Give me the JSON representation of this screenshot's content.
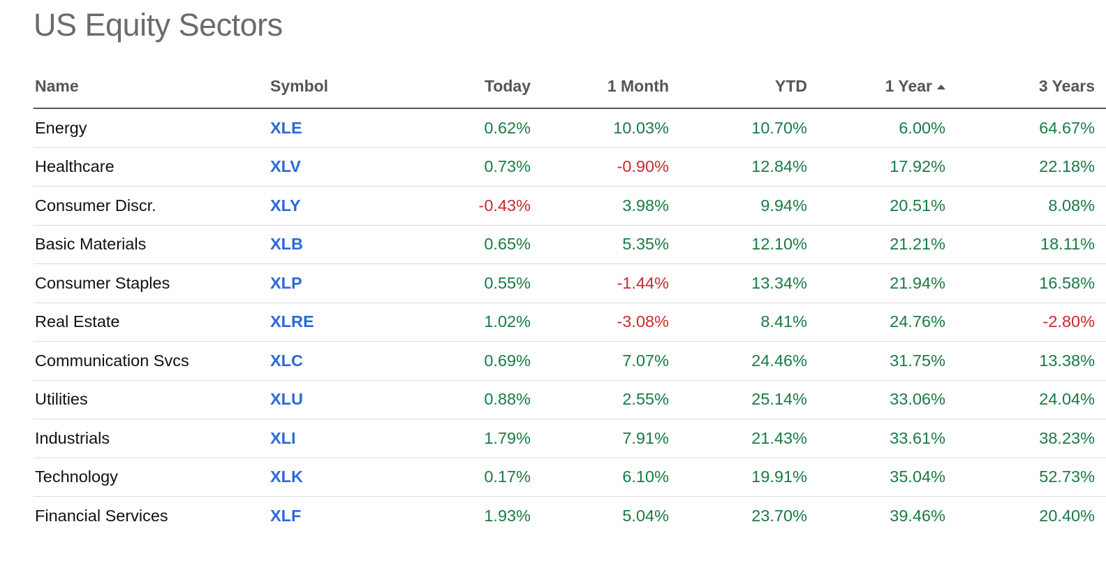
{
  "page": {
    "title": "US Equity Sectors"
  },
  "colors": {
    "positive": "#1a7a45",
    "negative": "#c62a2f",
    "link": "#2c6ad6",
    "header_text": "#555555",
    "title_text": "#6b6b6b"
  },
  "table": {
    "columns": [
      "Name",
      "Symbol",
      "Today",
      "1 Month",
      "YTD",
      "1 Year",
      "3 Years"
    ],
    "sort": {
      "column": "1 Year",
      "direction": "ascending",
      "icon": "sort-ascending-icon"
    },
    "rows": [
      {
        "name": "Energy",
        "symbol": "XLE",
        "today": "0.62%",
        "month": "10.03%",
        "ytd": "10.70%",
        "year": "6.00%",
        "three_years": "64.67%"
      },
      {
        "name": "Healthcare",
        "symbol": "XLV",
        "today": "0.73%",
        "month": "-0.90%",
        "ytd": "12.84%",
        "year": "17.92%",
        "three_years": "22.18%"
      },
      {
        "name": "Consumer Discr.",
        "symbol": "XLY",
        "today": "-0.43%",
        "month": "3.98%",
        "ytd": "9.94%",
        "year": "20.51%",
        "three_years": "8.08%"
      },
      {
        "name": "Basic Materials",
        "symbol": "XLB",
        "today": "0.65%",
        "month": "5.35%",
        "ytd": "12.10%",
        "year": "21.21%",
        "three_years": "18.11%"
      },
      {
        "name": "Consumer Staples",
        "symbol": "XLP",
        "today": "0.55%",
        "month": "-1.44%",
        "ytd": "13.34%",
        "year": "21.94%",
        "three_years": "16.58%"
      },
      {
        "name": "Real Estate",
        "symbol": "XLRE",
        "today": "1.02%",
        "month": "-3.08%",
        "ytd": "8.41%",
        "year": "24.76%",
        "three_years": "-2.80%"
      },
      {
        "name": "Communication Svcs",
        "symbol": "XLC",
        "today": "0.69%",
        "month": "7.07%",
        "ytd": "24.46%",
        "year": "31.75%",
        "three_years": "13.38%"
      },
      {
        "name": "Utilities",
        "symbol": "XLU",
        "today": "0.88%",
        "month": "2.55%",
        "ytd": "25.14%",
        "year": "33.06%",
        "three_years": "24.04%"
      },
      {
        "name": "Industrials",
        "symbol": "XLI",
        "today": "1.79%",
        "month": "7.91%",
        "ytd": "21.43%",
        "year": "33.61%",
        "three_years": "38.23%"
      },
      {
        "name": "Technology",
        "symbol": "XLK",
        "today": "0.17%",
        "month": "6.10%",
        "ytd": "19.91%",
        "year": "35.04%",
        "three_years": "52.73%"
      },
      {
        "name": "Financial Services",
        "symbol": "XLF",
        "today": "1.93%",
        "month": "5.04%",
        "ytd": "23.70%",
        "year": "39.46%",
        "three_years": "20.40%"
      }
    ]
  }
}
